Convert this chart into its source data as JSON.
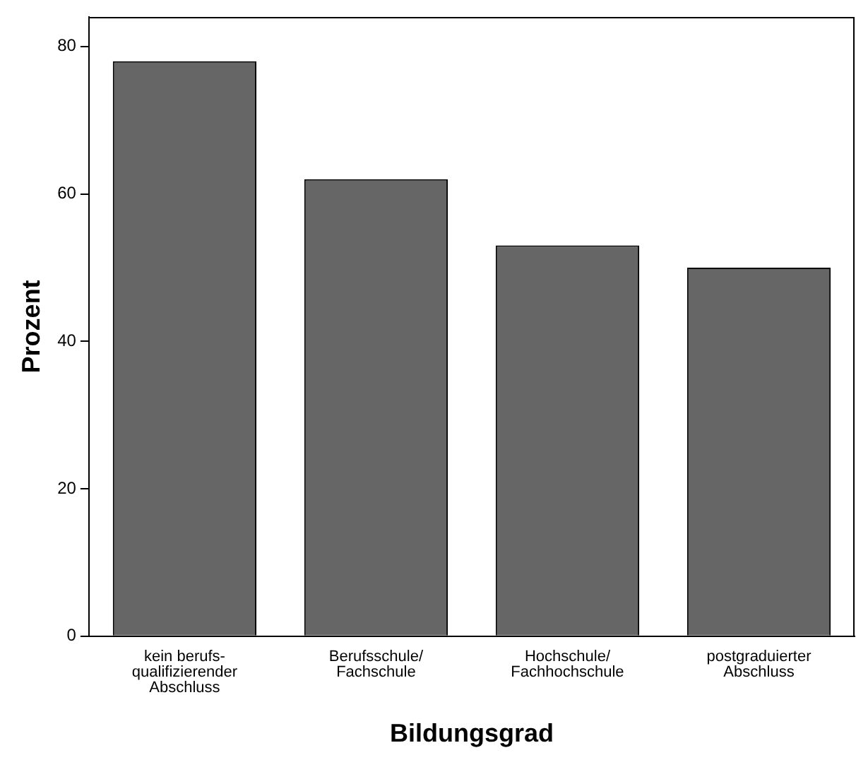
{
  "chart_data": {
    "type": "bar",
    "xlabel": "Bildungsgrad",
    "ylabel": "Prozent",
    "categories": [
      "kein berufs-\nqualifizierender\nAbschluss",
      "Berufsschule/\nFachschule",
      "Hochschule/\nFachhochschule",
      "postgraduierter\nAbschluss"
    ],
    "values": [
      78,
      62,
      53,
      50
    ],
    "color": "#666666",
    "ylim": [
      0,
      84
    ],
    "yticks": [
      0,
      20,
      40,
      60,
      80
    ],
    "grid": false,
    "legend": false
  }
}
